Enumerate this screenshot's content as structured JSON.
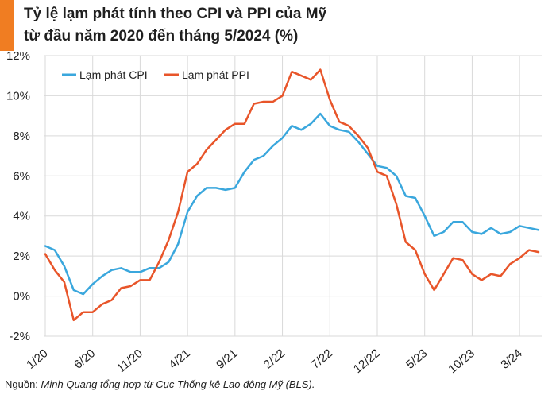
{
  "title_line1": "Tỷ lệ lạm phát tính theo CPI và PPI của Mỹ",
  "title_line2": "từ đầu năm 2020 đến tháng 5/2024 (%)",
  "source_label": "Nguồn:",
  "source_text": "Minh Quang tổng hợp từ Cục Thống kê Lao động Mỹ (BLS).",
  "colors": {
    "cpi": "#3aa7dd",
    "ppi": "#e8552a",
    "accent": "#f07d22"
  },
  "chart_data": {
    "type": "line",
    "title": "Tỷ lệ lạm phát tính theo CPI và PPI của Mỹ từ đầu năm 2020 đến tháng 5/2024 (%)",
    "xlabel": "",
    "ylabel": "",
    "ylim": [
      -2,
      12
    ],
    "yticks": [
      -2,
      0,
      2,
      4,
      6,
      8,
      10,
      12
    ],
    "ytick_labels": [
      "-2%",
      "0%",
      "2%",
      "4%",
      "6%",
      "8%",
      "10%",
      "12%"
    ],
    "grid": true,
    "legend": "top-left",
    "x_months": [
      "1/20",
      "2/20",
      "3/20",
      "4/20",
      "5/20",
      "6/20",
      "7/20",
      "8/20",
      "9/20",
      "10/20",
      "11/20",
      "12/20",
      "1/21",
      "2/21",
      "3/21",
      "4/21",
      "5/21",
      "6/21",
      "7/21",
      "8/21",
      "9/21",
      "10/21",
      "11/21",
      "12/21",
      "1/22",
      "2/22",
      "3/22",
      "4/22",
      "5/22",
      "6/22",
      "7/22",
      "8/22",
      "9/22",
      "10/22",
      "11/22",
      "12/22",
      "1/23",
      "2/23",
      "3/23",
      "4/23",
      "5/23",
      "6/23",
      "7/23",
      "8/23",
      "9/23",
      "10/23",
      "11/23",
      "12/23",
      "1/24",
      "2/24",
      "3/24",
      "4/24",
      "5/24"
    ],
    "tick_labels": [
      "1/20",
      "6/20",
      "11/20",
      "4/21",
      "9/21",
      "2/22",
      "7/22",
      "12/22",
      "5/23",
      "10/23",
      "3/24"
    ],
    "tick_indices": [
      0,
      5,
      10,
      15,
      20,
      25,
      30,
      35,
      40,
      45,
      50
    ],
    "series": [
      {
        "name": "Lạm phát CPI",
        "color": "#3aa7dd",
        "values": [
          2.5,
          2.3,
          1.5,
          0.3,
          0.1,
          0.6,
          1.0,
          1.3,
          1.4,
          1.2,
          1.2,
          1.4,
          1.4,
          1.7,
          2.6,
          4.2,
          5.0,
          5.4,
          5.4,
          5.3,
          5.4,
          6.2,
          6.8,
          7.0,
          7.5,
          7.9,
          8.5,
          8.3,
          8.6,
          9.1,
          8.5,
          8.3,
          8.2,
          7.7,
          7.1,
          6.5,
          6.4,
          6.0,
          5.0,
          4.9,
          4.0,
          3.0,
          3.2,
          3.7,
          3.7,
          3.2,
          3.1,
          3.4,
          3.1,
          3.2,
          3.5,
          3.4,
          3.3
        ]
      },
      {
        "name": "Lạm phát PPI",
        "color": "#e8552a",
        "values": [
          2.1,
          1.3,
          0.7,
          -1.2,
          -0.8,
          -0.8,
          -0.4,
          -0.2,
          0.4,
          0.5,
          0.8,
          0.8,
          1.7,
          2.8,
          4.2,
          6.2,
          6.6,
          7.3,
          7.8,
          8.3,
          8.6,
          8.6,
          9.6,
          9.7,
          9.7,
          10.0,
          11.2,
          11.0,
          10.8,
          11.3,
          9.8,
          8.7,
          8.5,
          8.0,
          7.4,
          6.2,
          6.0,
          4.6,
          2.7,
          2.3,
          1.1,
          0.3,
          1.1,
          1.9,
          1.8,
          1.1,
          0.8,
          1.1,
          1.0,
          1.6,
          1.9,
          2.3,
          2.2
        ]
      }
    ]
  }
}
